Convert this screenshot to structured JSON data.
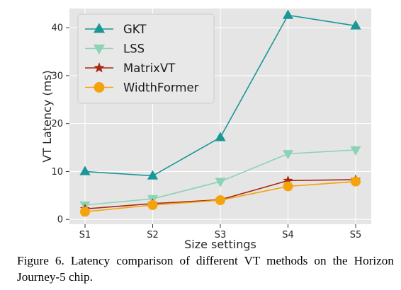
{
  "caption": "Figure 6.  Latency comparison of different VT methods on the Horizon Journey-5 chip.",
  "chart_data": {
    "type": "line",
    "title": "",
    "xlabel": "Size settings",
    "ylabel": "VT Latency (ms)",
    "categories": [
      "S1",
      "S2",
      "S3",
      "S4",
      "S5"
    ],
    "ylim": [
      -1,
      44
    ],
    "yticks": [
      0,
      10,
      20,
      30,
      40
    ],
    "grid": true,
    "legend_position": "upper-left",
    "background_color": "#e5e5e5",
    "grid_color": "#ffffff",
    "series": [
      {
        "name": "GKT",
        "values": [
          10.0,
          9.1,
          17.1,
          42.6,
          40.4
        ],
        "color": "#1a9796",
        "marker": "triangle-up"
      },
      {
        "name": "LSS",
        "values": [
          3.0,
          4.3,
          7.9,
          13.7,
          14.5
        ],
        "color": "#8dd3b5",
        "marker": "triangle-down"
      },
      {
        "name": "MatrixVT",
        "values": [
          2.2,
          3.3,
          4.1,
          8.1,
          8.3
        ],
        "color": "#a62a12",
        "marker": "star"
      },
      {
        "name": "WidthFormer",
        "values": [
          1.6,
          3.0,
          4.0,
          6.9,
          7.9
        ],
        "color": "#f5a30c",
        "marker": "circle"
      }
    ]
  }
}
